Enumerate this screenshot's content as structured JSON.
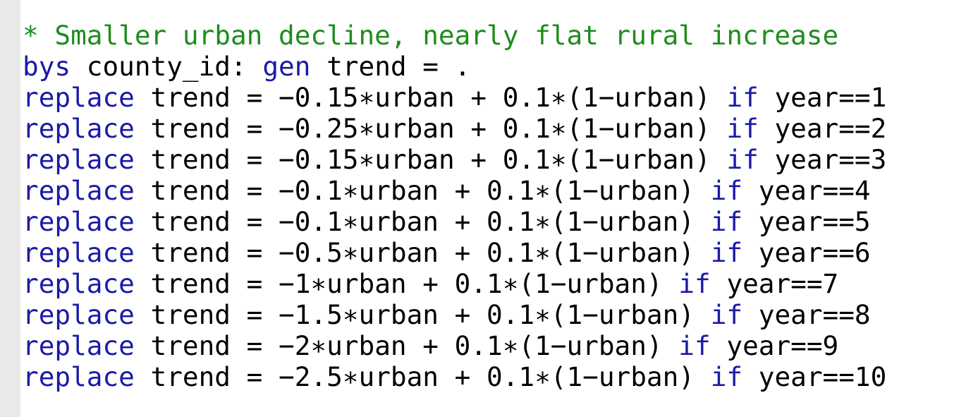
{
  "colors": {
    "comment": "#1e8c1e",
    "keyword": "#1a1aa6",
    "text": "#000000",
    "gutter": "#e9e9e9",
    "background": "#ffffff"
  },
  "lines": [
    {
      "tokens": [
        {
          "type": "comment",
          "text": "* Smaller urban decline, nearly flat rural increase"
        }
      ]
    },
    {
      "tokens": [
        {
          "type": "keyword",
          "text": "bys"
        },
        {
          "type": "plain",
          "text": " county_id: "
        },
        {
          "type": "keyword",
          "text": "gen"
        },
        {
          "type": "plain",
          "text": " trend = ."
        }
      ]
    },
    {
      "tokens": [
        {
          "type": "keyword",
          "text": "replace"
        },
        {
          "type": "plain",
          "text": " trend = −0.15∗urban + 0.1∗(1−urban) "
        },
        {
          "type": "keyword",
          "text": "if"
        },
        {
          "type": "plain",
          "text": " year==1"
        }
      ]
    },
    {
      "tokens": [
        {
          "type": "keyword",
          "text": "replace"
        },
        {
          "type": "plain",
          "text": " trend = −0.25∗urban + 0.1∗(1−urban) "
        },
        {
          "type": "keyword",
          "text": "if"
        },
        {
          "type": "plain",
          "text": " year==2"
        }
      ]
    },
    {
      "tokens": [
        {
          "type": "keyword",
          "text": "replace"
        },
        {
          "type": "plain",
          "text": " trend = −0.15∗urban + 0.1∗(1−urban) "
        },
        {
          "type": "keyword",
          "text": "if"
        },
        {
          "type": "plain",
          "text": " year==3"
        }
      ]
    },
    {
      "tokens": [
        {
          "type": "keyword",
          "text": "replace"
        },
        {
          "type": "plain",
          "text": " trend = −0.1∗urban + 0.1∗(1−urban) "
        },
        {
          "type": "keyword",
          "text": "if"
        },
        {
          "type": "plain",
          "text": " year==4"
        }
      ]
    },
    {
      "tokens": [
        {
          "type": "keyword",
          "text": "replace"
        },
        {
          "type": "plain",
          "text": " trend = −0.1∗urban + 0.1∗(1−urban) "
        },
        {
          "type": "keyword",
          "text": "if"
        },
        {
          "type": "plain",
          "text": " year==5"
        }
      ]
    },
    {
      "tokens": [
        {
          "type": "keyword",
          "text": "replace"
        },
        {
          "type": "plain",
          "text": " trend = −0.5∗urban + 0.1∗(1−urban) "
        },
        {
          "type": "keyword",
          "text": "if"
        },
        {
          "type": "plain",
          "text": " year==6"
        }
      ]
    },
    {
      "tokens": [
        {
          "type": "keyword",
          "text": "replace"
        },
        {
          "type": "plain",
          "text": " trend = −1∗urban + 0.1∗(1−urban) "
        },
        {
          "type": "keyword",
          "text": "if"
        },
        {
          "type": "plain",
          "text": " year==7"
        }
      ]
    },
    {
      "tokens": [
        {
          "type": "keyword",
          "text": "replace"
        },
        {
          "type": "plain",
          "text": " trend = −1.5∗urban + 0.1∗(1−urban) "
        },
        {
          "type": "keyword",
          "text": "if"
        },
        {
          "type": "plain",
          "text": " year==8"
        }
      ]
    },
    {
      "tokens": [
        {
          "type": "keyword",
          "text": "replace"
        },
        {
          "type": "plain",
          "text": " trend = −2∗urban + 0.1∗(1−urban) "
        },
        {
          "type": "keyword",
          "text": "if"
        },
        {
          "type": "plain",
          "text": " year==9"
        }
      ]
    },
    {
      "tokens": [
        {
          "type": "keyword",
          "text": "replace"
        },
        {
          "type": "plain",
          "text": " trend = −2.5∗urban + 0.1∗(1−urban) "
        },
        {
          "type": "keyword",
          "text": "if"
        },
        {
          "type": "plain",
          "text": " year==10"
        }
      ]
    }
  ]
}
